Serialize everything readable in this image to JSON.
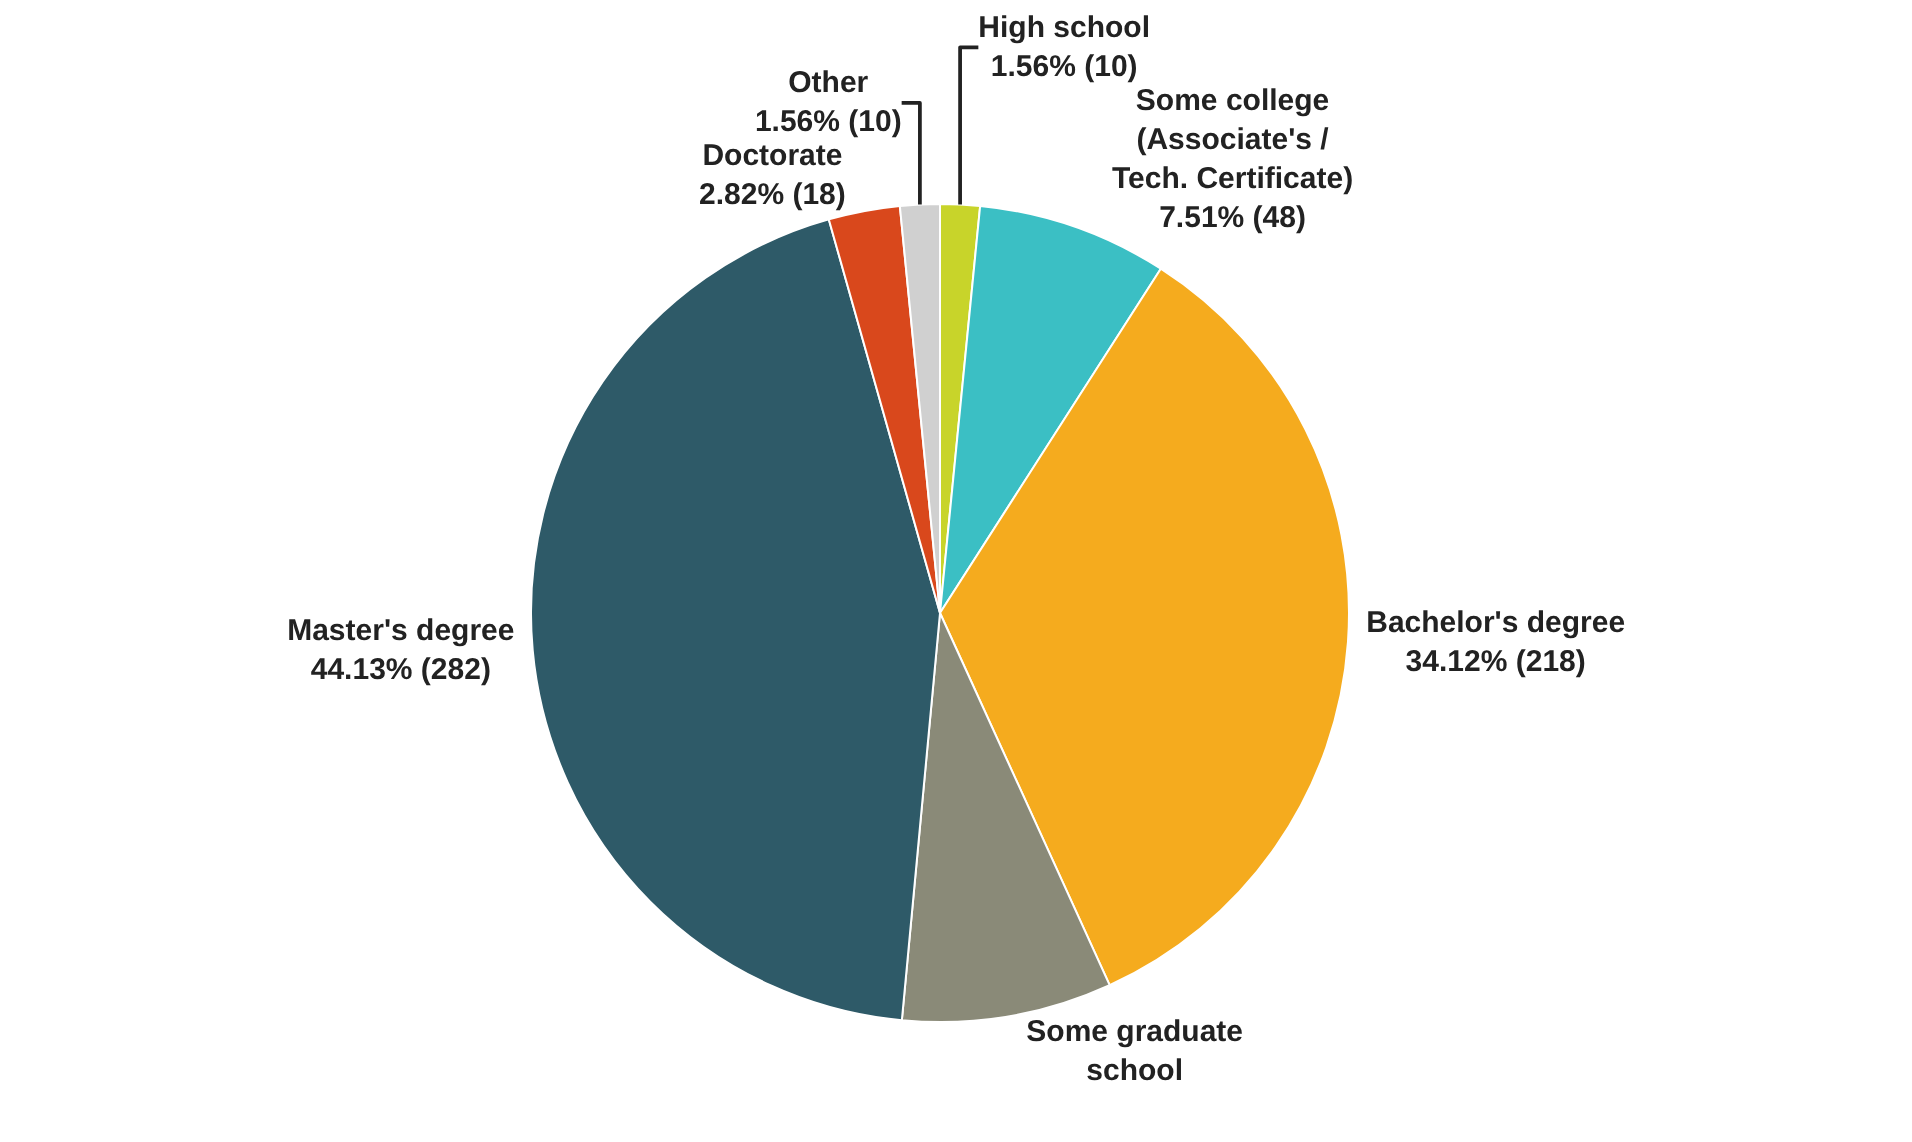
{
  "chart_data": {
    "type": "pie",
    "categories": [
      "High school",
      "Some college\n(Associate's /\nTech. Certificate)",
      "Bachelor's degree",
      "Some graduate\nschool",
      "Master's degree",
      "Doctorate",
      "Other"
    ],
    "values": [
      10,
      48,
      218,
      53,
      282,
      18,
      10
    ],
    "value_labels": [
      "1.56% (10)",
      "7.51% (48)",
      "34.12% (218)",
      null,
      "44.13% (282)",
      "2.82% (18)",
      "1.56% (10)"
    ],
    "colors": [
      "#c8d42a",
      "#3bbfc4",
      "#f5ab1e",
      "#8a8a78",
      "#2e5a68",
      "#d9481c",
      "#d0d0d0"
    ],
    "legend": false
  }
}
